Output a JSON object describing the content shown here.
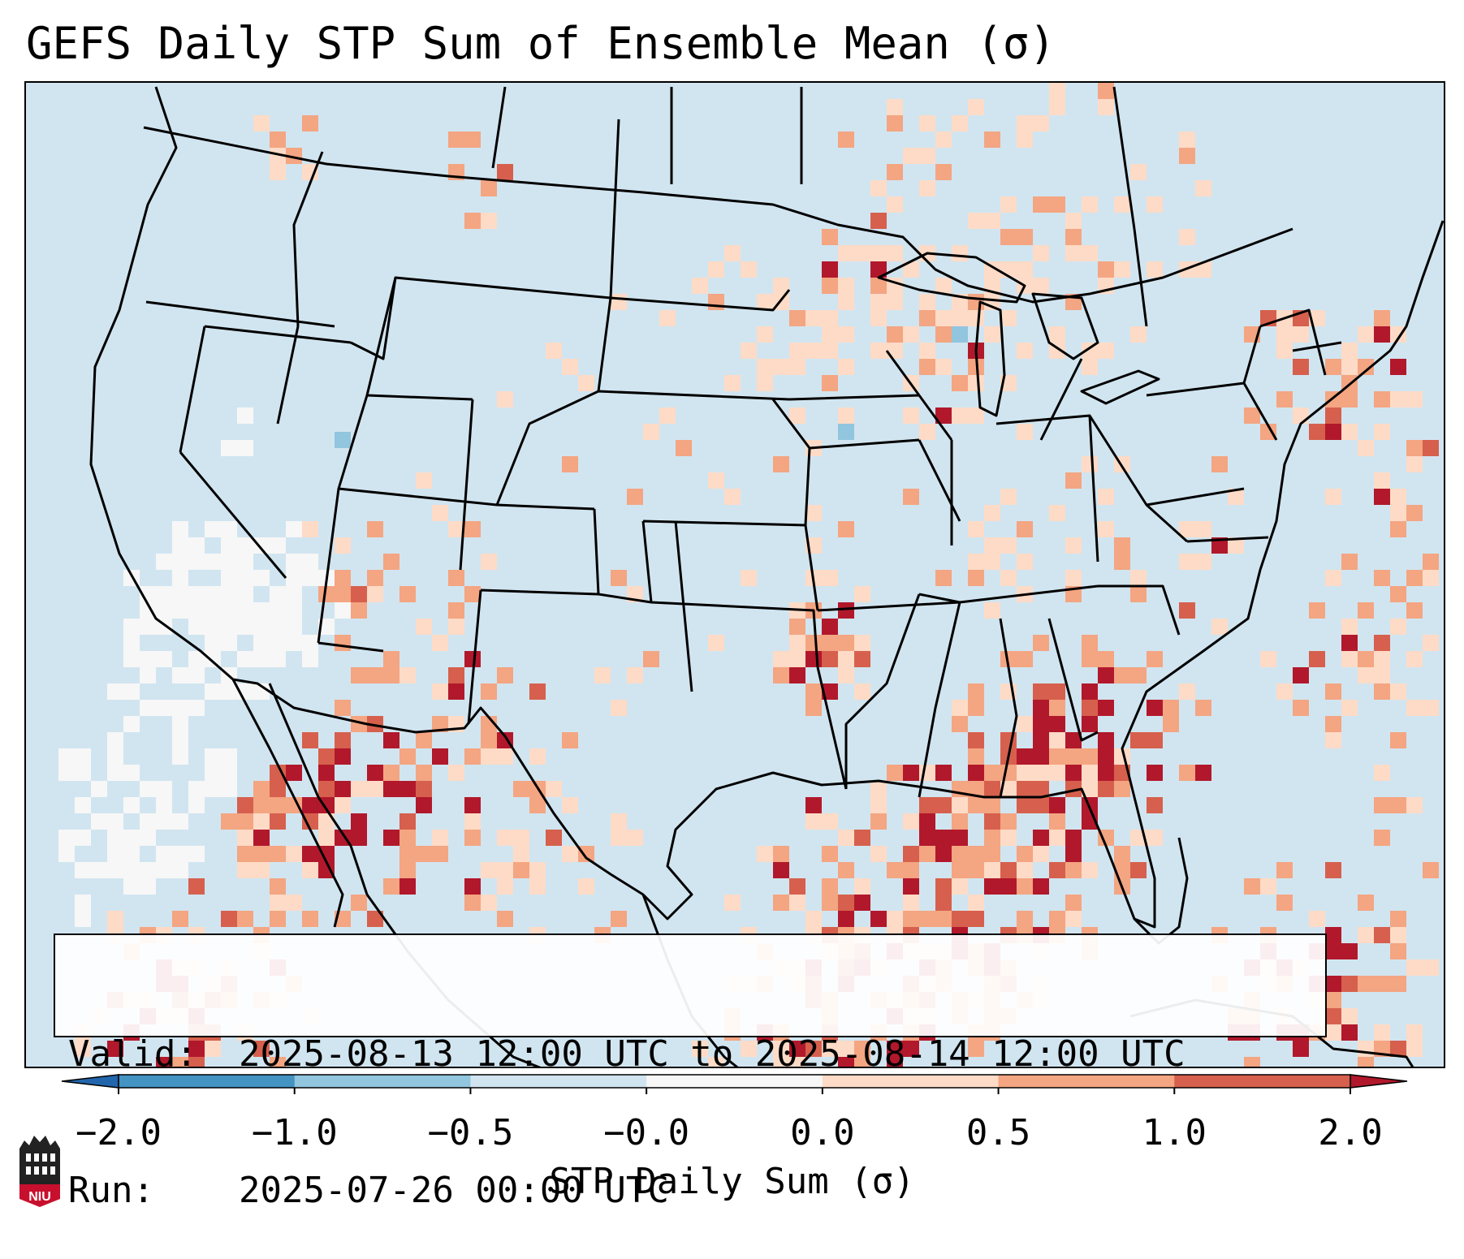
{
  "title": "GEFS Daily STP Sum of Ensemble Mean (σ)",
  "info": {
    "valid_label": "Valid:",
    "valid_value": "2025-08-13 12:00 UTC to 2025-08-14 12:00 UTC",
    "run_label": "Run:",
    "run_value": "2025-07-26 00:00 UTC"
  },
  "colorbar": {
    "label": "STP Daily Sum (σ)",
    "ticks": [
      "−2.0",
      "−1.0",
      "−0.5",
      "−0.0",
      "0.0",
      "0.5",
      "1.0",
      "2.0"
    ],
    "colors": [
      "#4393c3",
      "#92c5de",
      "#d1e5f0",
      "#f7f7f7",
      "#fddbc7",
      "#f4a582",
      "#d6604d"
    ],
    "under_color": "#2166ac",
    "over_color": "#b2182b"
  },
  "map": {
    "background_color": "#d1e5f0",
    "regions": [
      {
        "name": "Montana-Alberta border",
        "level": "high"
      },
      {
        "name": "Oklahoma-Arkansas",
        "level": "high"
      },
      {
        "name": "Sonora / Gulf of California",
        "level": "high"
      },
      {
        "name": "Central Gulf of Mexico",
        "level": "high"
      },
      {
        "name": "Western Atlantic east of Florida",
        "level": "high"
      },
      {
        "name": "Northeast US",
        "level": "moderate"
      },
      {
        "name": "Upper Midwest / Minnesota",
        "level": "moderate"
      },
      {
        "name": "California / Pacific coast",
        "level": "near-zero"
      }
    ]
  },
  "logo": {
    "text": "NIU",
    "color": "#c8102e"
  }
}
